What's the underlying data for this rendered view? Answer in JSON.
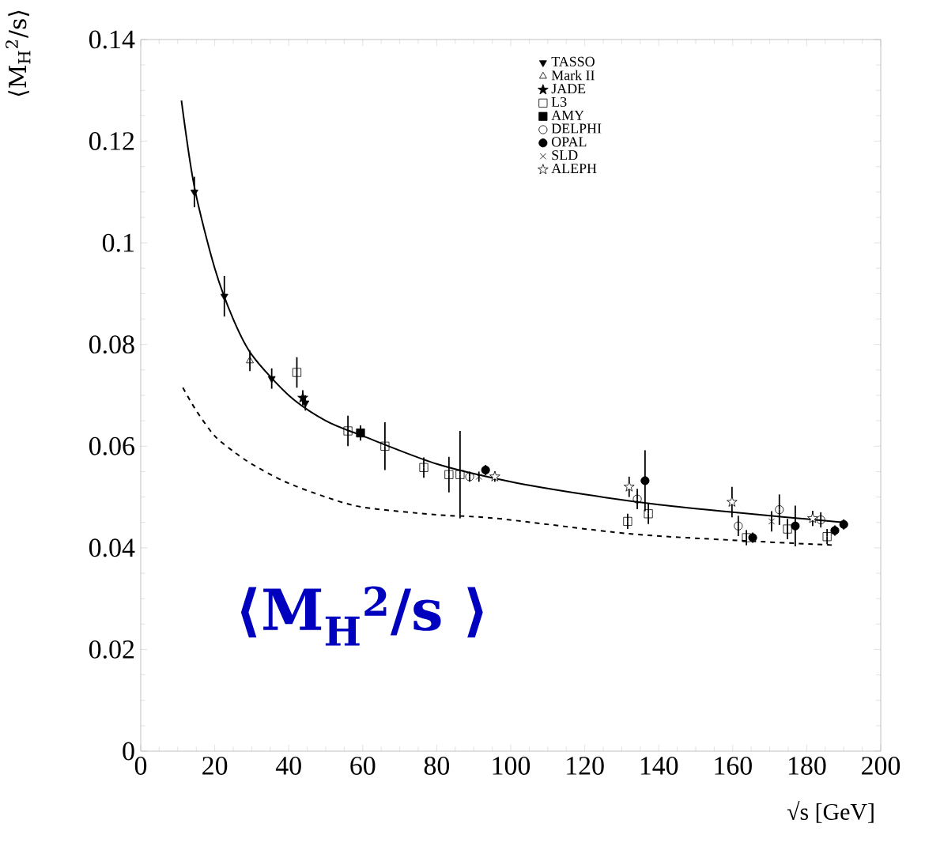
{
  "chart_data": {
    "type": "scatter",
    "xlabel": "√s [GeV]",
    "ylabel": "⟨M$_{H}$$^{2}$/s⟩",
    "annotations": [
      "⟨M$_{H}$$^{2}$/s ⟩"
    ],
    "xlim": [
      0,
      200
    ],
    "ylim": [
      0,
      0.14
    ],
    "xticks": [
      0,
      20,
      40,
      60,
      80,
      100,
      120,
      140,
      160,
      180,
      200
    ],
    "yticks": [
      0,
      0.02,
      0.04,
      0.06,
      0.08,
      0.1,
      0.12,
      0.14
    ],
    "legend": "top right",
    "grid": false,
    "series": [
      {
        "name": "TASSO",
        "color": "#000000",
        "marker": "triangle-down",
        "x": [
          14.5,
          22.6,
          35.4,
          44.5
        ],
        "values": [
          0.11,
          0.0895,
          0.0733,
          0.0685
        ],
        "errors": [
          0.003,
          0.004,
          0.002,
          0.0015
        ]
      },
      {
        "name": "Mark II",
        "color": "#000000",
        "marker": "triangle-open",
        "x": [
          29.5
        ],
        "values": [
          0.0768
        ],
        "errors": [
          0.002
        ]
      },
      {
        "name": "JADE",
        "color": "#000000",
        "marker": "star",
        "x": [
          43.8
        ],
        "values": [
          0.0695
        ],
        "errors": [
          0.0015
        ]
      },
      {
        "name": "L3",
        "color": "#000000",
        "marker": "square-open",
        "x": [
          42.2,
          56,
          66,
          76.5,
          83.3,
          86.3,
          131.6,
          137.2,
          163.7,
          174.8,
          185.5
        ],
        "values": [
          0.0745,
          0.063,
          0.06,
          0.0558,
          0.0544,
          0.0544,
          0.0452,
          0.0467,
          0.042,
          0.0437,
          0.0422
        ],
        "errors": [
          0.003,
          0.003,
          0.0047,
          0.002,
          0.0035,
          0.0086,
          0.0015,
          0.002,
          0.0015,
          0.002,
          0.0015
        ]
      },
      {
        "name": "AMY",
        "color": "#000000",
        "marker": "square",
        "x": [
          59.4
        ],
        "values": [
          0.0626
        ],
        "errors": [
          0.0015
        ]
      },
      {
        "name": "DELPHI",
        "color": "#000000",
        "marker": "circle-open",
        "x": [
          88.9,
          134.2,
          161.5,
          172.6,
          183.8
        ],
        "values": [
          0.054,
          0.0496,
          0.0443,
          0.0475,
          0.0455
        ],
        "errors": [
          0.001,
          0.002,
          0.002,
          0.003,
          0.0015
        ]
      },
      {
        "name": "OPAL",
        "color": "#000000",
        "marker": "circle",
        "x": [
          93.2,
          136.3,
          165.4,
          176.9,
          187.6,
          190
        ],
        "values": [
          0.0553,
          0.0532,
          0.042,
          0.0443,
          0.0434,
          0.0446
        ],
        "errors": [
          0.001,
          0.006,
          0.001,
          0.004,
          0.001,
          0.001
        ]
      },
      {
        "name": "SLD",
        "color": "#000000",
        "marker": "cross",
        "x": [
          91.4,
          170.5
        ],
        "values": [
          0.054,
          0.0452
        ],
        "errors": [
          0.001,
          0.002
        ]
      },
      {
        "name": "ALEPH",
        "color": "#000000",
        "marker": "star-open",
        "x": [
          95.7,
          132,
          159.8,
          181.6
        ],
        "values": [
          0.054,
          0.052,
          0.049,
          0.0458
        ],
        "errors": [
          0.001,
          0.002,
          0.003,
          0.0015
        ]
      },
      {
        "type": "line",
        "color": "#000000",
        "marker": "none",
        "line_style": "solid",
        "x": [
          11,
          14.5,
          20,
          25,
          30,
          40,
          50,
          60,
          80,
          100,
          120,
          140,
          160,
          190
        ],
        "values": [
          0.128,
          0.111,
          0.095,
          0.085,
          0.078,
          0.07,
          0.065,
          0.062,
          0.0565,
          0.053,
          0.0505,
          0.0485,
          0.047,
          0.045
        ]
      },
      {
        "type": "line",
        "color": "#000000",
        "marker": "none",
        "line_style": "dashed",
        "x": [
          11.4,
          15,
          20,
          25,
          30,
          39,
          50,
          60,
          80,
          96,
          131.6,
          160,
          188
        ],
        "values": [
          0.0715,
          0.067,
          0.062,
          0.059,
          0.0565,
          0.053,
          0.05,
          0.048,
          0.0465,
          0.0458,
          0.0428,
          0.0415,
          0.0405
        ]
      }
    ]
  }
}
